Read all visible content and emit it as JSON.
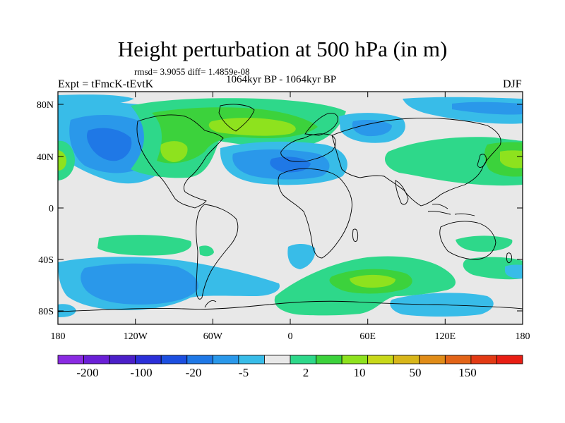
{
  "header": {
    "title": "Height perturbation at 500 hPa (in m)",
    "stats": "rmsd= 3.9055 diff= 1.4859e-08",
    "experiment": "Expt = tFmcK-tEvtK",
    "period": "1064kyr BP - 1064kyr BP",
    "season": "DJF"
  },
  "map": {
    "projection": "equirectangular",
    "lon_range": [
      -180,
      180
    ],
    "lat_range": [
      -90,
      90
    ],
    "background_color": "#e8e8e8",
    "lat_ticks": [
      "80N",
      "40N",
      "0",
      "40S",
      "80S"
    ],
    "lon_ticks": [
      "180",
      "120W",
      "60W",
      "0",
      "60E",
      "120E",
      "180"
    ]
  },
  "colorbar": {
    "colors": [
      "#8a2be2",
      "#6a1fd6",
      "#4b1fc8",
      "#2b2fd8",
      "#1c4fe0",
      "#1f78e6",
      "#2a98ea",
      "#38bce8",
      "#e8e8e8",
      "#2ed88a",
      "#3cd23c",
      "#8ee21e",
      "#c8d81a",
      "#d8b61a",
      "#e08c18",
      "#e26418",
      "#e23a14",
      "#e81e14"
    ],
    "labels": [
      "-200",
      "-100",
      "-20",
      "-5",
      "2",
      "10",
      "50",
      "150"
    ]
  },
  "palette": {
    "deep_blue": "#1f78e6",
    "mid_blue": "#2a98ea",
    "light_blue": "#38bce8",
    "green": "#2ed88a",
    "bright_green": "#3cd23c",
    "yellow_green": "#8ee21e",
    "gray": "#e8e8e8"
  }
}
